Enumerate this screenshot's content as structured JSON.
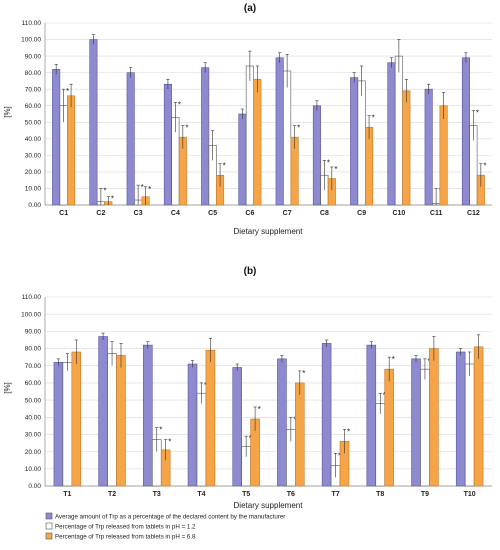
{
  "colors": {
    "s1": "#8e8ad0",
    "s2": "#ffffff",
    "s3": "#f5a548",
    "grid": "#d8d8d8",
    "err": "#333333"
  },
  "legend": {
    "position": "bottom-left",
    "items": [
      "Average amount of Trp as a percentage of the declared content by the manufacturer",
      "Percentage of Trp released from tablets in pH = 1.2",
      "Percentage of Trp released from tablets in pH = 6.8"
    ]
  },
  "chart_data": [
    {
      "type": "bar",
      "title": "(a)",
      "xlabel": "Dietary supplement",
      "ylabel": "[%]",
      "ylim": [
        0,
        110
      ],
      "ytick_step": 10,
      "grid": true,
      "categories": [
        "C1",
        "C2",
        "C3",
        "C4",
        "C5",
        "C6",
        "C7",
        "C8",
        "C9",
        "C10",
        "C11",
        "C12"
      ],
      "series": [
        {
          "name": "Average amount of Trp as a percentage of the declared content by the manufacturer",
          "values": [
            82,
            100,
            80,
            73,
            83,
            55,
            89,
            60,
            77,
            86,
            70,
            89
          ],
          "errors": [
            3,
            3,
            3,
            3,
            3,
            3,
            3,
            3,
            3,
            3,
            3,
            3
          ],
          "significant": [
            false,
            false,
            false,
            false,
            false,
            false,
            false,
            false,
            false,
            false,
            false,
            false
          ]
        },
        {
          "name": "Percentage of Trp released from tablets in pH = 1.2",
          "values": [
            60,
            2,
            3,
            53,
            36,
            84,
            81,
            18,
            75,
            90,
            1,
            48
          ],
          "errors": [
            10,
            8,
            9,
            9,
            9,
            9,
            10,
            9,
            9,
            10,
            9,
            9
          ],
          "significant": [
            true,
            true,
            true,
            true,
            false,
            false,
            false,
            true,
            false,
            false,
            true,
            true
          ]
        },
        {
          "name": "Percentage of Trp released from tablets in pH = 6.8",
          "values": [
            66,
            2,
            5,
            41,
            18,
            76,
            41,
            16,
            47,
            69,
            60,
            18
          ],
          "errors": [
            7,
            3,
            6,
            7,
            7,
            8,
            7,
            7,
            7,
            7,
            8,
            7
          ],
          "significant": [
            false,
            true,
            true,
            true,
            true,
            false,
            true,
            true,
            true,
            false,
            false,
            true
          ]
        }
      ]
    },
    {
      "type": "bar",
      "title": "(b)",
      "xlabel": "Dietary supplement",
      "ylabel": "[%]",
      "ylim": [
        0,
        110
      ],
      "ytick_step": 10,
      "grid": true,
      "categories": [
        "T1",
        "T2",
        "T3",
        "T4",
        "T5",
        "T6",
        "T7",
        "T8",
        "T9",
        "T10"
      ],
      "series": [
        {
          "name": "Average amount of Trp as a percentage of the declared content by the manufacturer",
          "values": [
            72,
            87,
            82,
            71,
            69,
            74,
            83,
            82,
            74,
            78
          ],
          "errors": [
            2,
            2,
            2,
            2,
            2,
            2,
            2,
            2,
            2,
            2
          ],
          "significant": [
            false,
            false,
            false,
            false,
            false,
            false,
            false,
            false,
            false,
            false
          ]
        },
        {
          "name": "Percentage of Trp released from tablets in pH = 1.2",
          "values": [
            72,
            77,
            27,
            54,
            23,
            33,
            12,
            48,
            68,
            71
          ],
          "errors": [
            5,
            7,
            7,
            6,
            6,
            7,
            7,
            6,
            6,
            7
          ],
          "significant": [
            false,
            false,
            true,
            true,
            true,
            true,
            true,
            true,
            true,
            false
          ]
        },
        {
          "name": "Percentage of Trp released from tablets in pH = 6.8",
          "values": [
            78,
            76,
            21,
            79,
            39,
            60,
            26,
            68,
            80,
            81
          ],
          "errors": [
            7,
            7,
            6,
            7,
            7,
            7,
            7,
            7,
            7,
            7
          ],
          "significant": [
            false,
            false,
            true,
            false,
            true,
            true,
            true,
            true,
            false,
            false
          ]
        }
      ]
    }
  ]
}
